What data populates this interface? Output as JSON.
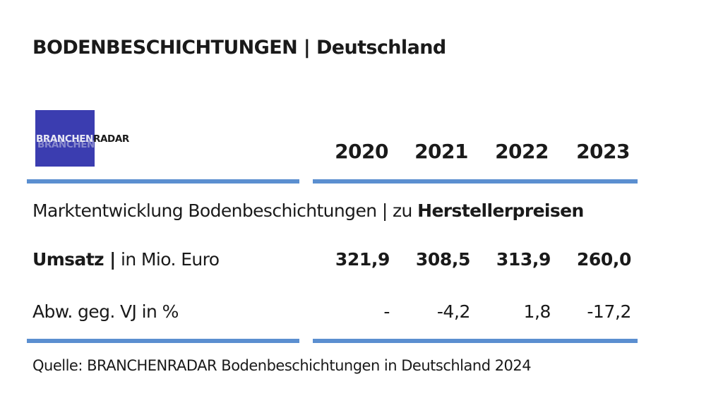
{
  "title": {
    "main": "BODENBESCHICHTUNGEN",
    "separator": "|",
    "region": "Deutschland"
  },
  "logo": {
    "part1": "BRANCHEN",
    "part2": "RADAR"
  },
  "subtitle": {
    "prefix": "Marktentwicklung Bodenbeschichtungen | zu",
    "emphasis": "Herstellerpreisen"
  },
  "source": "Quelle: BRANCHENRADAR Bodenbeschichtungen in Deutschland 2024",
  "colors": {
    "rule": "#5b8fd0",
    "logo_bg": "#3b3db0"
  },
  "chart_data": {
    "type": "table",
    "columns": [
      "2020",
      "2021",
      "2022",
      "2023"
    ],
    "rows": [
      {
        "label_bold": "Umsatz |",
        "label_rest": "in Mio. Euro",
        "values": [
          "321,9",
          "308,5",
          "313,9",
          "260,0"
        ]
      },
      {
        "label_bold": "",
        "label_rest": "Abw. geg. VJ in %",
        "values": [
          "-",
          "-4,2",
          "1,8",
          "-17,2"
        ]
      }
    ]
  }
}
